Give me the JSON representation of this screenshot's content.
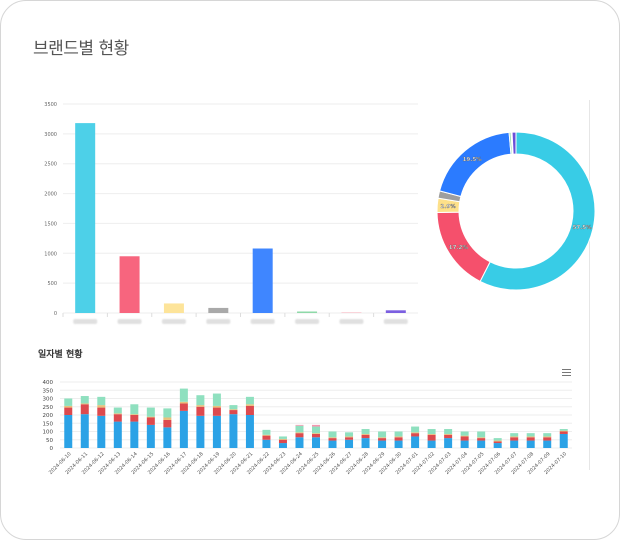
{
  "header": {
    "title": "브랜드별 현황"
  },
  "daily_section": {
    "title": "일자별 현황",
    "menu_icon": "hamburger-menu-icon"
  },
  "chart_data": [
    {
      "type": "bar",
      "categories": [
        "",
        "",
        "",
        "",
        "",
        "",
        "",
        ""
      ],
      "values": [
        3180,
        950,
        160,
        85,
        1080,
        25,
        10,
        45
      ],
      "colors": [
        "#4dd0e8",
        "#f7657e",
        "#fde49a",
        "#a9a9a9",
        "#3f86ff",
        "#8ed9a8",
        "#f7b6c2",
        "#7b5fe0"
      ],
      "ylim": [
        0,
        3500
      ],
      "yticks": [
        0,
        500,
        1000,
        1500,
        2000,
        2500,
        3000,
        3500
      ],
      "grid": true
    },
    {
      "type": "pie",
      "donut": true,
      "values": [
        57.5,
        17.2,
        2.9,
        1.5,
        19.5,
        0.4,
        0.2,
        0.8
      ],
      "labels": [
        "57.5%",
        "17.2%",
        "2.9%",
        "",
        "19.5%",
        "",
        "",
        ""
      ],
      "colors": [
        "#38cce6",
        "#f5506c",
        "#fde08a",
        "#9e9e9e",
        "#2b7bff",
        "#8ed9a8",
        "#f7b6c2",
        "#6b4fd8"
      ]
    },
    {
      "type": "bar",
      "stacked": true,
      "categories": [
        "2024-06-10",
        "2024-06-11",
        "2024-06-12",
        "2024-06-13",
        "2024-06-14",
        "2024-06-15",
        "2024-06-16",
        "2024-06-17",
        "2024-06-18",
        "2024-06-19",
        "2024-06-20",
        "2024-06-21",
        "2024-06-22",
        "2024-06-23",
        "2024-06-24",
        "2024-06-25",
        "2024-06-26",
        "2024-06-27",
        "2024-06-28",
        "2024-06-29",
        "2024-06-30",
        "2024-07-01",
        "2024-07-02",
        "2024-07-03",
        "2024-07-04",
        "2024-07-05",
        "2024-07-06",
        "2024-07-07",
        "2024-07-08",
        "2024-07-09",
        "2024-07-10"
      ],
      "series": [
        {
          "color": "#2ba2e6",
          "values": [
            200,
            205,
            195,
            160,
            160,
            140,
            125,
            225,
            195,
            195,
            205,
            200,
            50,
            30,
            65,
            65,
            45,
            50,
            60,
            45,
            45,
            70,
            45,
            60,
            45,
            45,
            30,
            45,
            45,
            45,
            85
          ]
        },
        {
          "color": "#dd4a4e",
          "values": [
            45,
            60,
            50,
            45,
            40,
            45,
            45,
            45,
            55,
            50,
            25,
            55,
            25,
            20,
            25,
            20,
            15,
            15,
            20,
            15,
            20,
            20,
            35,
            20,
            25,
            15,
            10,
            20,
            20,
            20,
            15
          ]
        },
        {
          "color": "#e9c07a",
          "values": [
            10,
            5,
            15,
            5,
            5,
            5,
            15,
            10,
            10,
            10,
            5,
            10,
            5,
            5,
            5,
            5,
            5,
            5,
            5,
            5,
            5,
            5,
            5,
            5,
            5,
            5,
            5,
            5,
            5,
            5,
            5
          ]
        },
        {
          "color": "#8fe0bf",
          "values": [
            45,
            45,
            50,
            35,
            60,
            55,
            55,
            80,
            60,
            75,
            25,
            45,
            30,
            15,
            40,
            40,
            35,
            25,
            30,
            35,
            30,
            35,
            30,
            30,
            25,
            35,
            15,
            20,
            20,
            20,
            10
          ]
        },
        {
          "color": "#f597b0",
          "values": [
            0,
            0,
            0,
            0,
            0,
            0,
            0,
            0,
            0,
            0,
            0,
            0,
            0,
            0,
            5,
            10,
            0,
            0,
            0,
            0,
            0,
            0,
            0,
            0,
            0,
            0,
            0,
            0,
            0,
            0,
            0
          ]
        }
      ],
      "ylim": [
        0,
        400
      ],
      "yticks": [
        0,
        50,
        100,
        150,
        200,
        250,
        300,
        350,
        400
      ],
      "grid": true
    }
  ]
}
